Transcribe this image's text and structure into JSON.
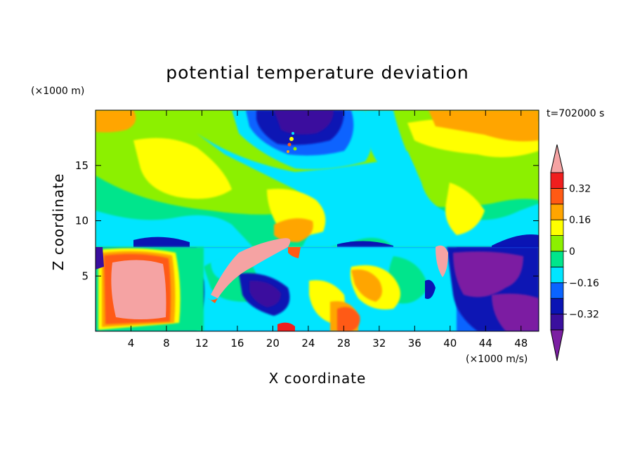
{
  "chart_data": {
    "type": "heatmap",
    "title": "potential temperature deviation",
    "xlabel": "X coordinate",
    "ylabel": "Z coordinate",
    "x_units": "(×1000 m/s)",
    "y_units": "(×1000 m)",
    "time_label": "t=702000 s",
    "xlim": [
      0,
      50
    ],
    "ylim": [
      0,
      20
    ],
    "x_ticks": [
      4,
      8,
      12,
      16,
      20,
      24,
      28,
      32,
      36,
      40,
      44,
      48
    ],
    "y_ticks": [
      5,
      10,
      15
    ],
    "colorbar": {
      "levels": [
        -0.4,
        -0.32,
        -0.24,
        -0.16,
        -0.08,
        0,
        0.08,
        0.16,
        0.24,
        0.32,
        0.4
      ],
      "labels": [
        "0.32",
        "0.16",
        "0",
        "−0.16",
        "−0.32"
      ],
      "label_values": [
        0.32,
        0.16,
        0,
        -0.16,
        -0.32
      ],
      "colors": [
        "#7b1fa2",
        "#3a0f9e",
        "#0a14b4",
        "#0a64ff",
        "#00e5ff",
        "#00e58c",
        "#8cf000",
        "#ffff00",
        "#ffa500",
        "#ff5a14",
        "#f01e1e",
        "#f5a3a3"
      ]
    }
  }
}
